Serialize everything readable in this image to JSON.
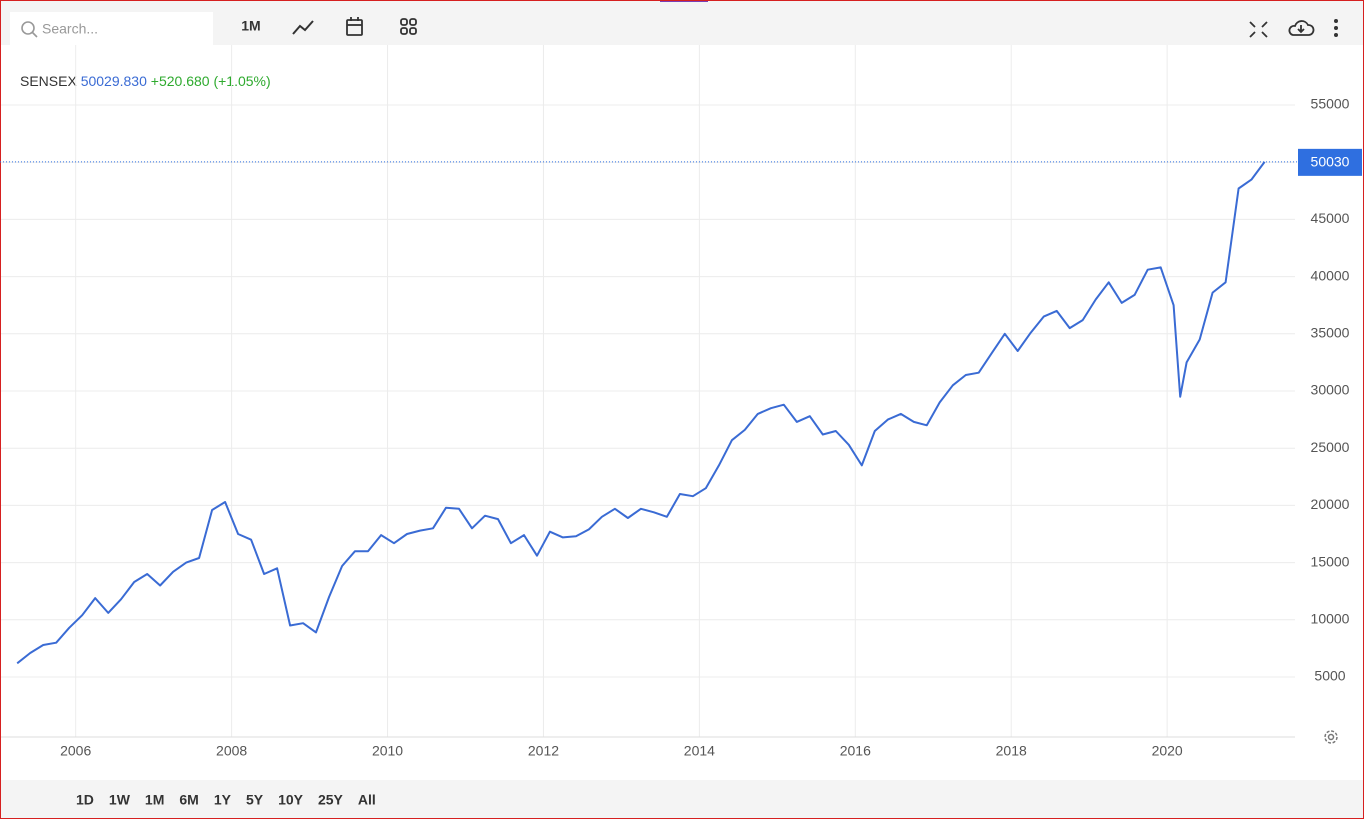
{
  "toolbar": {
    "search_placeholder": "Search...",
    "interval": "1M"
  },
  "chart_data": {
    "type": "line",
    "legend": {
      "symbol": "SENSEX",
      "last": "50029.830",
      "change": "+520.680 (+1.05%)"
    },
    "x": [
      2005.25,
      2005.417,
      2005.583,
      2005.75,
      2005.917,
      2006.083,
      2006.25,
      2006.417,
      2006.583,
      2006.75,
      2006.917,
      2007.083,
      2007.25,
      2007.417,
      2007.583,
      2007.75,
      2007.917,
      2008.083,
      2008.25,
      2008.417,
      2008.583,
      2008.75,
      2008.917,
      2009.083,
      2009.25,
      2009.417,
      2009.583,
      2009.75,
      2009.917,
      2010.083,
      2010.25,
      2010.417,
      2010.583,
      2010.75,
      2010.917,
      2011.083,
      2011.25,
      2011.417,
      2011.583,
      2011.75,
      2011.917,
      2012.083,
      2012.25,
      2012.417,
      2012.583,
      2012.75,
      2012.917,
      2013.083,
      2013.25,
      2013.417,
      2013.583,
      2013.75,
      2013.917,
      2014.083,
      2014.25,
      2014.417,
      2014.583,
      2014.75,
      2014.917,
      2015.083,
      2015.25,
      2015.417,
      2015.583,
      2015.75,
      2015.917,
      2016.083,
      2016.25,
      2016.417,
      2016.583,
      2016.75,
      2016.917,
      2017.083,
      2017.25,
      2017.417,
      2017.583,
      2017.75,
      2017.917,
      2018.083,
      2018.25,
      2018.417,
      2018.583,
      2018.75,
      2018.917,
      2019.083,
      2019.25,
      2019.417,
      2019.583,
      2019.75,
      2019.917,
      2020.083,
      2020.167,
      2020.25,
      2020.417,
      2020.583,
      2020.75,
      2020.917,
      2021.083,
      2021.25
    ],
    "values": [
      6200,
      7100,
      7800,
      8000,
      9300,
      10400,
      11900,
      10600,
      11800,
      13300,
      14000,
      13000,
      14200,
      15000,
      15400,
      19600,
      20300,
      17500,
      17000,
      14000,
      14500,
      9500,
      9700,
      8900,
      12000,
      14700,
      16000,
      16000,
      17400,
      16700,
      17500,
      17800,
      18000,
      19800,
      19700,
      18000,
      19100,
      18800,
      16700,
      17400,
      15600,
      17700,
      17200,
      17300,
      17900,
      19000,
      19700,
      18900,
      19700,
      19400,
      19000,
      21000,
      20800,
      21500,
      23500,
      25700,
      26600,
      28000,
      28500,
      28800,
      27300,
      27800,
      26200,
      26500,
      25300,
      23500,
      26500,
      27500,
      28000,
      27300,
      27000,
      29000,
      30500,
      31400,
      31600,
      33300,
      35000,
      33500,
      35100,
      36500,
      37000,
      35500,
      36200,
      38000,
      39500,
      37700,
      38400,
      40600,
      40800,
      37500,
      29500,
      32500,
      34500,
      38600,
      39500,
      47700,
      48500,
      50029.83
    ],
    "color": "#3a6bd4",
    "xlim": [
      2005.26,
      2021.64
    ],
    "ylim": [
      0,
      60000
    ],
    "xticks": [
      2006,
      2008,
      2010,
      2012,
      2014,
      2016,
      2018,
      2020
    ],
    "yticks": [
      5000,
      10000,
      15000,
      20000,
      25000,
      30000,
      35000,
      40000,
      45000,
      50000,
      55000
    ],
    "grid": true,
    "current": 50030,
    "current_color": "#2f6fe0"
  },
  "range_buttons": [
    "1D",
    "1W",
    "1M",
    "6M",
    "1Y",
    "5Y",
    "10Y",
    "25Y",
    "All"
  ]
}
